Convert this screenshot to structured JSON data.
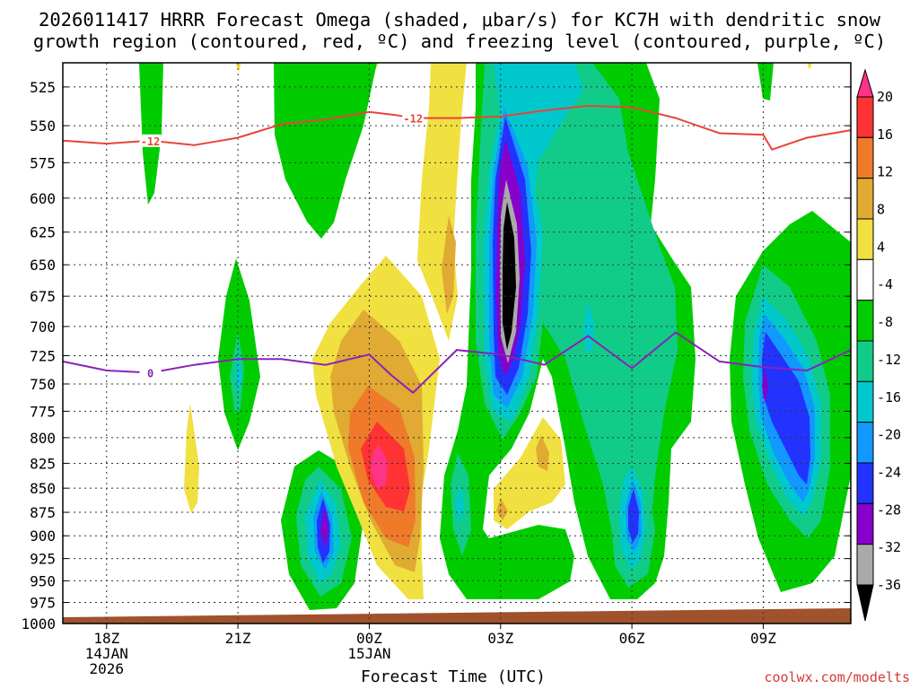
{
  "chart_data": {
    "type": "heatmap",
    "title_line1": "2026011417 HRRR Forecast Omega (shaded, μbar/s) for KC7H with dendritic snow",
    "title_line2": "growth region (contoured, red, ºC) and freezing level (contoured, purple, ºC)",
    "xlabel": "Forecast Time (UTC)",
    "credit": "coolwx.com/modelts",
    "xlim": [
      17,
      35
    ],
    "ylim": [
      1000,
      510
    ],
    "y_levels": [
      525,
      550,
      575,
      600,
      625,
      650,
      675,
      700,
      725,
      750,
      775,
      800,
      825,
      850,
      875,
      900,
      925,
      950,
      975,
      1000
    ],
    "y_tick_labels": [
      "525",
      "550",
      "575",
      "600",
      "625",
      "650",
      "675",
      "700",
      "725",
      "750",
      "775",
      "800",
      "825",
      "850",
      "875",
      "900",
      "925",
      "950",
      "975",
      "1000"
    ],
    "x_ticks": [
      {
        "hour": 18,
        "lines": [
          "18Z",
          "14JAN",
          "2026"
        ]
      },
      {
        "hour": 21,
        "lines": [
          "21Z"
        ]
      },
      {
        "hour": 24,
        "lines": [
          "00Z",
          "15JAN"
        ]
      },
      {
        "hour": 27,
        "lines": [
          "03Z"
        ]
      },
      {
        "hour": 30,
        "lines": [
          "06Z"
        ]
      },
      {
        "hour": 33,
        "lines": [
          "09Z"
        ]
      }
    ],
    "colorbar": {
      "labels": [
        "20",
        "16",
        "12",
        "8",
        "4",
        "-4",
        "-8",
        "-12",
        "-16",
        "-20",
        "-24",
        "-28",
        "-32",
        "-36"
      ],
      "colors": [
        "#ff3388",
        "#ff3333",
        "#ef7a2a",
        "#e0aa33",
        "#f0e040",
        "#ffffff",
        "#00cc00",
        "#11cc88",
        "#00c8cc",
        "#1199ff",
        "#2233ff",
        "#8800cc",
        "#aaaaaa",
        "#000000"
      ]
    },
    "series": [
      {
        "name": "dendritic snow growth region (-12 ºC)",
        "color": "#e8443a",
        "label": "-12",
        "x": [
          17.0,
          18.0,
          19.0,
          20.0,
          21.0,
          22.0,
          23.0,
          24.0,
          24.6,
          25.0,
          26.0,
          27.0,
          28.0,
          29.0,
          30.0,
          31.0,
          32.0,
          33.0,
          33.2,
          34.0,
          35.0
        ],
        "y": [
          560,
          562,
          560,
          563,
          558,
          549,
          546,
          541,
          543,
          545,
          545,
          544,
          540,
          537,
          538,
          545,
          555,
          556,
          566,
          558,
          553
        ]
      },
      {
        "name": "freezing level (0 ºC)",
        "color": "#8822bb",
        "label": "0",
        "x": [
          17.0,
          18.0,
          19.0,
          20.0,
          21.0,
          22.0,
          23.0,
          24.0,
          24.5,
          25.0,
          26.0,
          27.0,
          28.0,
          29.0,
          30.0,
          31.0,
          32.0,
          33.0,
          34.0,
          35.0
        ],
        "y": [
          730,
          738,
          740,
          733,
          728,
          728,
          733,
          724,
          742,
          758,
          720,
          724,
          733,
          708,
          736,
          705,
          730,
          735,
          738,
          720
        ]
      }
    ],
    "omega_regions": [
      {
        "hour": 19.0,
        "p_top": 510,
        "p_bottom": 630,
        "omega_min": -8
      },
      {
        "hour": 21.0,
        "p_top": 660,
        "p_bottom": 820,
        "omega_min": -12
      },
      {
        "hour": 22.9,
        "p_top": 830,
        "p_bottom": 985,
        "omega_min": -28
      },
      {
        "hour": 24.5,
        "p_top": 730,
        "p_bottom": 900,
        "omega_max": 16
      },
      {
        "hour": 27.0,
        "p_top": 510,
        "p_bottom": 780,
        "omega_min": -36
      },
      {
        "hour": 30.0,
        "p_top": 830,
        "p_bottom": 975,
        "omega_min": -20
      },
      {
        "hour": 33.0,
        "p_top": 640,
        "p_bottom": 960,
        "omega_min": -24
      }
    ]
  }
}
